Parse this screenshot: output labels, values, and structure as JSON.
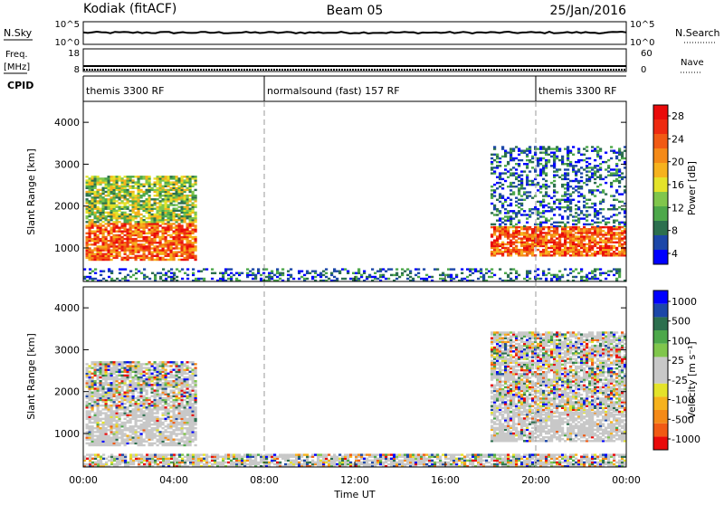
{
  "header": {
    "radar": "Kodiak (fitACF)",
    "beam": "Beam 05",
    "date": "25/Jan/2016"
  },
  "info_panels": {
    "nsky_label": "N.Sky",
    "nsky_ticks": [
      "10^5",
      "10^0"
    ],
    "nsearch_label": "N.Search",
    "nsearch_ticks": [
      "10^5",
      "10^0"
    ],
    "freq_label_1": "Freq.",
    "freq_label_2": "[MHz]",
    "freq_ticks": [
      "18",
      "8"
    ],
    "nave_label": "Nave",
    "nave_ticks": [
      "60",
      "0"
    ],
    "cpid_label": "CPID",
    "cpid_segments": [
      {
        "label": "themis 3300 RF",
        "start": 0,
        "end": 8
      },
      {
        "label": "normalsound (fast) 157 RF",
        "start": 8,
        "end": 20
      },
      {
        "label": "themis 3300 RF",
        "start": 20,
        "end": 24
      }
    ]
  },
  "chart_data": [
    {
      "type": "heatmap",
      "name": "power",
      "ylabel": "Slant Range [km]",
      "xlabel": "Time UT",
      "xlim": [
        0,
        24
      ],
      "ylim": [
        200,
        4500
      ],
      "x_ticks": [
        "00:00",
        "04:00",
        "08:00",
        "12:00",
        "16:00",
        "20:00",
        "00:00"
      ],
      "y_ticks": [
        1000,
        2000,
        3000,
        4000
      ],
      "colorbar": {
        "label": "Power [dB]",
        "ticks": [
          "28",
          "24",
          "20",
          "16",
          "12",
          "8",
          "4"
        ],
        "colors": [
          "#0000ff",
          "#1c47a8",
          "#2c6f4e",
          "#4da84a",
          "#80c64c",
          "#e4e32a",
          "#f6b21d",
          "#f48a18",
          "#f15a14",
          "#ee2a10",
          "#ea0a0a"
        ]
      },
      "regions": [
        {
          "t0": 0.1,
          "t1": 5.0,
          "r0": 700,
          "r1": 1600,
          "level": "high"
        },
        {
          "t0": 0.1,
          "t1": 5.0,
          "r0": 1600,
          "r1": 2700,
          "level": "mid"
        },
        {
          "t0": 18.0,
          "t1": 24.0,
          "r0": 800,
          "r1": 1500,
          "level": "high"
        },
        {
          "t0": 18.0,
          "t1": 24.0,
          "r0": 1500,
          "r1": 3400,
          "level": "low"
        },
        {
          "t0": 0.0,
          "t1": 24.0,
          "r0": 200,
          "r1": 500,
          "level": "low"
        }
      ]
    },
    {
      "type": "heatmap",
      "name": "velocity",
      "ylabel": "Slant Range [km]",
      "xlabel": "Time UT",
      "xlim": [
        0,
        24
      ],
      "ylim": [
        200,
        4500
      ],
      "x_ticks": [
        "00:00",
        "04:00",
        "08:00",
        "12:00",
        "16:00",
        "20:00",
        "00:00"
      ],
      "y_ticks": [
        1000,
        2000,
        3000,
        4000
      ],
      "colorbar": {
        "label": "Velocity [m s⁻¹]",
        "ticks": [
          "1000",
          "500",
          "100",
          "25",
          "-25",
          "-100",
          "-500",
          "-1000"
        ],
        "colors": [
          "#ea0a0a",
          "#f15a14",
          "#f48a18",
          "#f6b21d",
          "#e4e32a",
          "#c8c8c8",
          "#c8c8c8",
          "#80c64c",
          "#4da84a",
          "#2c6f4e",
          "#1c47a8",
          "#0000ff"
        ]
      },
      "regions": [
        {
          "t0": 0.1,
          "t1": 5.0,
          "r0": 700,
          "r1": 1600,
          "level": "ground"
        },
        {
          "t0": 0.1,
          "t1": 5.0,
          "r0": 1600,
          "r1": 2700,
          "level": "mixed"
        },
        {
          "t0": 18.0,
          "t1": 24.0,
          "r0": 800,
          "r1": 1500,
          "level": "ground"
        },
        {
          "t0": 18.0,
          "t1": 24.0,
          "r0": 1500,
          "r1": 3400,
          "level": "mixed"
        },
        {
          "t0": 0.0,
          "t1": 24.0,
          "r0": 200,
          "r1": 500,
          "level": "mixed"
        }
      ]
    }
  ]
}
